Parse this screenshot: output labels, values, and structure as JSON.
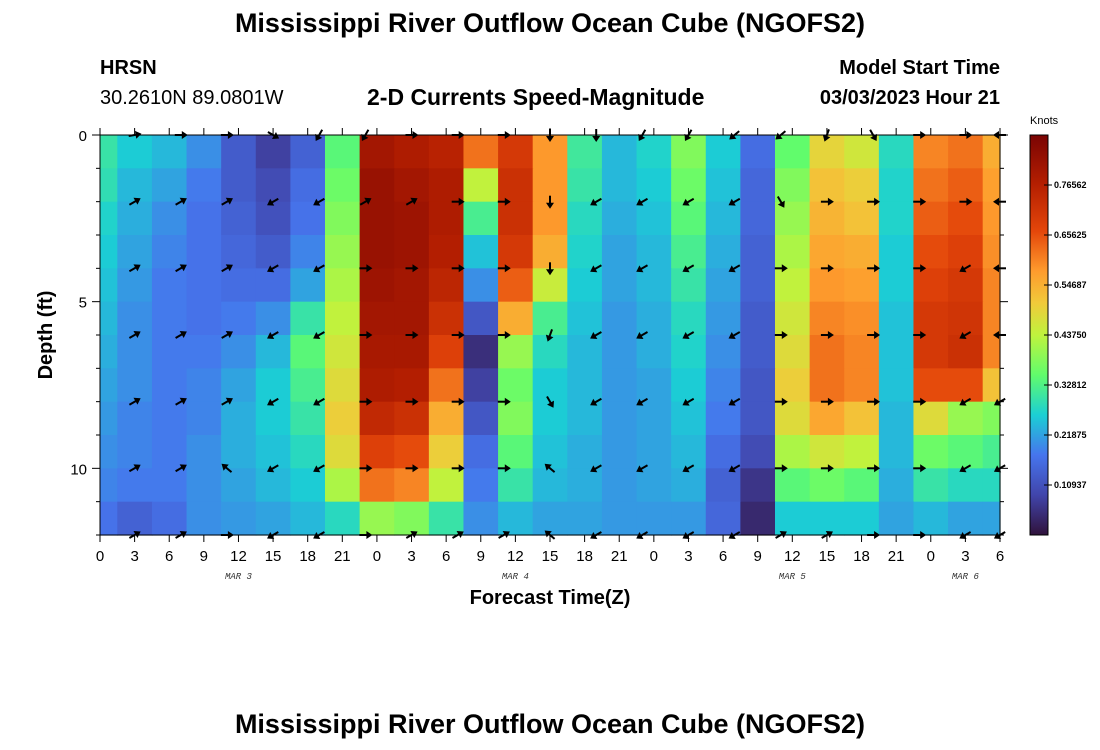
{
  "header": {
    "title": "Mississippi River Outflow Ocean Cube (NGOFS2)",
    "station": "HRSN",
    "coords": "30.2610N  89.0801W",
    "subtitle": "2-D Currents Speed-Magnitude",
    "model_start_label": "Model Start Time",
    "model_start_value": "03/03/2023 Hour 21"
  },
  "footer": {
    "title": "Mississippi River Outflow Ocean Cube (NGOFS2)"
  },
  "chart_data": {
    "type": "heatmap",
    "title": "2-D Currents Speed-Magnitude",
    "xlabel": "Forecast Time(Z)",
    "ylabel": "Depth (ft)",
    "x_hours_range": [
      0,
      78
    ],
    "y_depth_range": [
      0,
      12
    ],
    "x_tick_labels": [
      "0",
      "3",
      "6",
      "9",
      "12",
      "15",
      "18",
      "21",
      "0",
      "3",
      "6",
      "9",
      "12",
      "15",
      "18",
      "21",
      "0",
      "3",
      "6",
      "9",
      "12",
      "15",
      "18",
      "21",
      "0",
      "3",
      "6"
    ],
    "y_tick_labels": [
      "0",
      "5",
      "10"
    ],
    "y_tick_values": [
      0,
      5,
      10
    ],
    "day_labels": [
      {
        "label": "MAR 3",
        "hour": 12
      },
      {
        "label": "MAR 4",
        "hour": 36
      },
      {
        "label": "MAR 5",
        "hour": 60
      },
      {
        "label": "MAR 6",
        "hour": 75
      }
    ],
    "colorbar": {
      "unit": "Knots",
      "min": 0.0,
      "max": 0.875,
      "labels": [
        "0.76562",
        "0.65625",
        "0.54687",
        "0.43750",
        "0.32812",
        "0.21875",
        "0.10937"
      ],
      "label_values": [
        0.76562,
        0.65625,
        0.54687,
        0.4375,
        0.32812,
        0.21875,
        0.10937
      ]
    },
    "depth_rows": [
      0.5,
      1.5,
      2.5,
      3.5,
      4.5,
      5.5,
      6.5,
      7.5,
      8.5,
      9.5,
      10.5,
      11.5
    ],
    "time_hours": [
      0,
      3,
      6,
      9,
      12,
      15,
      18,
      21,
      24,
      27,
      30,
      33,
      36,
      39,
      42,
      45,
      48,
      51,
      54,
      57,
      60,
      63,
      66,
      69,
      72,
      75,
      78
    ],
    "speed_knots": [
      [
        0.3,
        0.26,
        0.24,
        0.2,
        0.13,
        0.08,
        0.14,
        0.34,
        0.8,
        0.78,
        0.76,
        0.62,
        0.7,
        0.58,
        0.31,
        0.24,
        0.27,
        0.38,
        0.26,
        0.16,
        0.35,
        0.49,
        0.46,
        0.28,
        0.6,
        0.62,
        0.55
      ],
      [
        0.29,
        0.24,
        0.22,
        0.18,
        0.13,
        0.1,
        0.16,
        0.36,
        0.82,
        0.8,
        0.78,
        0.44,
        0.72,
        0.58,
        0.3,
        0.24,
        0.26,
        0.36,
        0.25,
        0.15,
        0.38,
        0.52,
        0.5,
        0.27,
        0.62,
        0.64,
        0.57
      ],
      [
        0.27,
        0.23,
        0.2,
        0.17,
        0.14,
        0.11,
        0.17,
        0.38,
        0.82,
        0.81,
        0.78,
        0.32,
        0.72,
        0.58,
        0.28,
        0.23,
        0.25,
        0.34,
        0.24,
        0.15,
        0.4,
        0.54,
        0.52,
        0.27,
        0.64,
        0.66,
        0.58
      ],
      [
        0.26,
        0.22,
        0.19,
        0.17,
        0.15,
        0.13,
        0.19,
        0.4,
        0.82,
        0.81,
        0.77,
        0.25,
        0.7,
        0.55,
        0.27,
        0.22,
        0.24,
        0.32,
        0.23,
        0.14,
        0.42,
        0.56,
        0.55,
        0.26,
        0.66,
        0.68,
        0.59
      ],
      [
        0.25,
        0.21,
        0.18,
        0.17,
        0.16,
        0.16,
        0.22,
        0.42,
        0.81,
        0.8,
        0.75,
        0.2,
        0.64,
        0.45,
        0.26,
        0.22,
        0.24,
        0.3,
        0.22,
        0.14,
        0.44,
        0.58,
        0.57,
        0.26,
        0.68,
        0.7,
        0.6
      ],
      [
        0.24,
        0.2,
        0.18,
        0.17,
        0.18,
        0.2,
        0.3,
        0.44,
        0.8,
        0.8,
        0.72,
        0.12,
        0.55,
        0.32,
        0.25,
        0.21,
        0.23,
        0.28,
        0.21,
        0.13,
        0.46,
        0.6,
        0.59,
        0.25,
        0.7,
        0.71,
        0.6
      ],
      [
        0.23,
        0.2,
        0.18,
        0.18,
        0.2,
        0.24,
        0.34,
        0.46,
        0.79,
        0.79,
        0.68,
        0.05,
        0.4,
        0.28,
        0.24,
        0.21,
        0.23,
        0.27,
        0.2,
        0.13,
        0.48,
        0.62,
        0.6,
        0.25,
        0.7,
        0.72,
        0.6
      ],
      [
        0.22,
        0.2,
        0.18,
        0.19,
        0.22,
        0.26,
        0.32,
        0.48,
        0.78,
        0.77,
        0.62,
        0.08,
        0.36,
        0.26,
        0.24,
        0.21,
        0.22,
        0.26,
        0.19,
        0.12,
        0.5,
        0.62,
        0.6,
        0.25,
        0.66,
        0.66,
        0.52
      ],
      [
        0.21,
        0.19,
        0.18,
        0.19,
        0.23,
        0.26,
        0.3,
        0.5,
        0.74,
        0.72,
        0.55,
        0.12,
        0.38,
        0.26,
        0.24,
        0.21,
        0.22,
        0.25,
        0.18,
        0.12,
        0.48,
        0.56,
        0.52,
        0.24,
        0.48,
        0.4,
        0.38
      ],
      [
        0.2,
        0.19,
        0.18,
        0.2,
        0.23,
        0.25,
        0.28,
        0.48,
        0.68,
        0.66,
        0.5,
        0.16,
        0.34,
        0.25,
        0.23,
        0.21,
        0.22,
        0.24,
        0.16,
        0.1,
        0.42,
        0.46,
        0.44,
        0.24,
        0.36,
        0.34,
        0.32
      ],
      [
        0.19,
        0.18,
        0.18,
        0.2,
        0.22,
        0.24,
        0.26,
        0.42,
        0.62,
        0.6,
        0.44,
        0.18,
        0.3,
        0.24,
        0.23,
        0.21,
        0.22,
        0.23,
        0.14,
        0.06,
        0.34,
        0.36,
        0.34,
        0.23,
        0.3,
        0.28,
        0.28
      ],
      [
        0.17,
        0.14,
        0.16,
        0.2,
        0.21,
        0.22,
        0.24,
        0.28,
        0.4,
        0.38,
        0.3,
        0.2,
        0.24,
        0.22,
        0.22,
        0.21,
        0.21,
        0.21,
        0.15,
        0.04,
        0.26,
        0.26,
        0.26,
        0.22,
        0.24,
        0.22,
        0.22
      ]
    ],
    "arrow_depths": [
      0,
      2,
      4,
      6,
      8,
      10,
      12
    ],
    "arrow_hours": [
      3,
      7,
      11,
      15,
      19,
      23,
      27,
      31,
      35,
      39,
      43,
      47,
      51,
      55,
      59,
      63,
      67,
      71,
      75,
      78
    ],
    "arrow_direction_deg": [
      [
        80,
        90,
        90,
        120,
        210,
        210,
        90,
        90,
        90,
        180,
        180,
        210,
        210,
        230,
        230,
        200,
        150,
        90,
        90,
        270
      ],
      [
        60,
        60,
        60,
        240,
        240,
        60,
        60,
        90,
        90,
        180,
        240,
        240,
        240,
        240,
        150,
        90,
        90,
        90,
        90,
        270
      ],
      [
        60,
        60,
        60,
        240,
        240,
        90,
        90,
        90,
        90,
        180,
        240,
        240,
        240,
        240,
        90,
        90,
        90,
        90,
        240,
        270
      ],
      [
        60,
        60,
        60,
        240,
        240,
        90,
        90,
        90,
        90,
        200,
        240,
        240,
        240,
        240,
        90,
        90,
        90,
        90,
        240,
        270
      ],
      [
        60,
        60,
        60,
        240,
        240,
        90,
        90,
        90,
        90,
        150,
        240,
        240,
        240,
        240,
        90,
        90,
        90,
        90,
        240,
        240
      ],
      [
        60,
        60,
        310,
        240,
        240,
        90,
        90,
        90,
        90,
        310,
        240,
        240,
        240,
        240,
        90,
        90,
        90,
        90,
        240,
        240
      ],
      [
        60,
        60,
        90,
        240,
        240,
        90,
        60,
        60,
        60,
        310,
        240,
        240,
        240,
        240,
        60,
        60,
        90,
        90,
        240,
        240
      ]
    ]
  }
}
